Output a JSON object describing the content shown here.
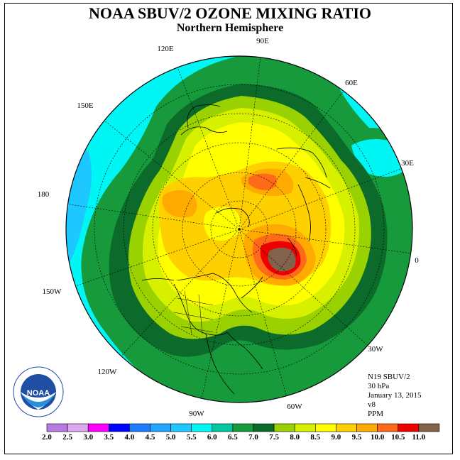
{
  "title": "NOAA SBUV/2 OZONE MIXING RATIO",
  "subtitle": "Northern Hemisphere",
  "info": {
    "satellite": "N19 SBUV/2",
    "pressure": "30 hPa",
    "date": "January 13, 2015",
    "version": "v8",
    "units": "PPM"
  },
  "logo": {
    "text": "NOAA",
    "ring_text": "NATIONAL OCEANIC AND ATMOSPHERIC ADMINISTRATION · U.S. DEPARTMENT OF COMMERCE"
  },
  "longitude_labels": [
    {
      "text": "90E"
    },
    {
      "text": "60E"
    },
    {
      "text": "120E"
    },
    {
      "text": "150E"
    },
    {
      "text": "30E"
    },
    {
      "text": "180"
    },
    {
      "text": "0"
    },
    {
      "text": "150W"
    },
    {
      "text": "30W"
    },
    {
      "text": "120W"
    },
    {
      "text": "60W"
    },
    {
      "text": "90W"
    }
  ],
  "colorbar": {
    "ticks": [
      "2.0",
      "2.5",
      "3.0",
      "3.5",
      "4.0",
      "4.5",
      "5.0",
      "5.5",
      "6.0",
      "6.5",
      "7.0",
      "7.5",
      "8.0",
      "8.5",
      "9.0",
      "9.5",
      "10.0",
      "10.5",
      "11.0"
    ],
    "colors": [
      "#b77ae0",
      "#dca8f0",
      "#ff00ff",
      "#0000ff",
      "#1c7cff",
      "#23a6ff",
      "#1cc8ff",
      "#00f5f5",
      "#00c8a0",
      "#169a3c",
      "#0c6b2a",
      "#99d200",
      "#d7f000",
      "#ffff00",
      "#ffd000",
      "#ffaa00",
      "#ff6a1a",
      "#ee0000",
      "#82624a"
    ]
  }
}
